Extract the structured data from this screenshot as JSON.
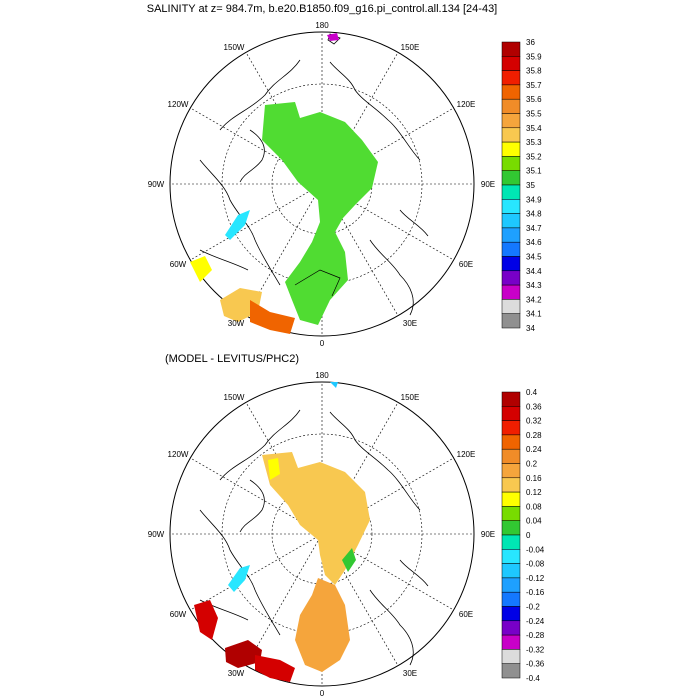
{
  "chart_data": [
    {
      "type": "heatmap",
      "projection": "north-polar-stereographic",
      "title": "SALINITY at z= 984.7m, b.e20.B1850.f09_g16.pi_control.all.134 [24-43]",
      "longitude_labels": [
        "180",
        "150E",
        "120E",
        "90E",
        "60E",
        "30E",
        "0",
        "30W",
        "60W",
        "90W",
        "120W",
        "150W"
      ],
      "colorbar": {
        "levels": [
          "36",
          "35.9",
          "35.8",
          "35.7",
          "35.6",
          "35.5",
          "35.4",
          "35.3",
          "35.2",
          "35.1",
          "35",
          "34.9",
          "34.8",
          "34.7",
          "34.6",
          "34.5",
          "34.4",
          "34.3",
          "34.2",
          "34.1",
          "34"
        ],
        "colors": [
          "#b00000",
          "#d40000",
          "#f01e00",
          "#f06400",
          "#f08c28",
          "#f5a53c",
          "#f8c850",
          "#ffff00",
          "#78dc00",
          "#32c832",
          "#00e6b4",
          "#28e6ff",
          "#1ec8ff",
          "#1ea0ff",
          "#1478ff",
          "#0000e6",
          "#7800c8",
          "#c800c8",
          "#dcdcdc",
          "#909090"
        ],
        "orientation": "vertical",
        "placement": "right"
      },
      "dominant_value_range": "35.1-35.2"
    },
    {
      "type": "heatmap",
      "projection": "north-polar-stereographic",
      "title": "(MODEL - LEVITUS/PHC2)",
      "longitude_labels": [
        "180",
        "150E",
        "120E",
        "90E",
        "60E",
        "30E",
        "0",
        "30W",
        "60W",
        "90W",
        "120W",
        "150W"
      ],
      "colorbar": {
        "levels": [
          "0.4",
          "0.36",
          "0.32",
          "0.28",
          "0.24",
          "0.2",
          "0.16",
          "0.12",
          "0.08",
          "0.04",
          "0",
          "-0.04",
          "-0.08",
          "-0.12",
          "-0.16",
          "-0.2",
          "-0.24",
          "-0.28",
          "-0.32",
          "-0.36",
          "-0.4"
        ],
        "colors": [
          "#b00000",
          "#d40000",
          "#f01e00",
          "#f06400",
          "#f08c28",
          "#f5a53c",
          "#f8c850",
          "#ffff00",
          "#78dc00",
          "#32c832",
          "#00e6b4",
          "#28e6ff",
          "#1ec8ff",
          "#1ea0ff",
          "#1478ff",
          "#0000e6",
          "#7800c8",
          "#c800c8",
          "#dcdcdc",
          "#909090"
        ],
        "orientation": "vertical",
        "placement": "right"
      },
      "dominant_value_range": "0.12-0.16"
    }
  ]
}
